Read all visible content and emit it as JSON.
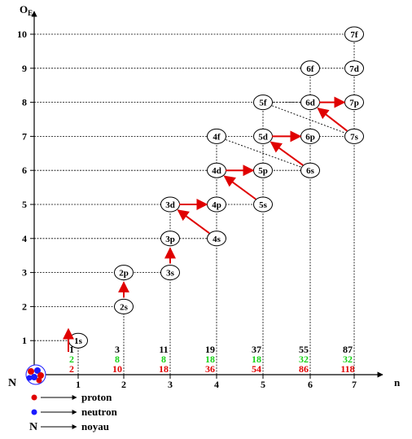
{
  "axes": {
    "y_label_main": "O",
    "y_label_sub": "E",
    "x_label": "n",
    "origin_label": "N"
  },
  "x_ticks": [
    "1",
    "2",
    "3",
    "4",
    "5",
    "6",
    "7"
  ],
  "y_ticks": [
    "1",
    "2",
    "3",
    "4",
    "5",
    "6",
    "7",
    "8",
    "9",
    "10"
  ],
  "orbitals": [
    {
      "label": "1s",
      "n": 1,
      "oe": 1
    },
    {
      "label": "2s",
      "n": 2,
      "oe": 2
    },
    {
      "label": "2p",
      "n": 2,
      "oe": 3
    },
    {
      "label": "3s",
      "n": 3,
      "oe": 3
    },
    {
      "label": "3p",
      "n": 3,
      "oe": 4
    },
    {
      "label": "3d",
      "n": 3,
      "oe": 5
    },
    {
      "label": "4s",
      "n": 4,
      "oe": 4
    },
    {
      "label": "4p",
      "n": 4,
      "oe": 5
    },
    {
      "label": "4d",
      "n": 4,
      "oe": 6
    },
    {
      "label": "4f",
      "n": 4,
      "oe": 7
    },
    {
      "label": "5s",
      "n": 5,
      "oe": 5
    },
    {
      "label": "5p",
      "n": 5,
      "oe": 6
    },
    {
      "label": "5d",
      "n": 5,
      "oe": 7
    },
    {
      "label": "5f",
      "n": 5,
      "oe": 8
    },
    {
      "label": "6s",
      "n": 6,
      "oe": 6
    },
    {
      "label": "6p",
      "n": 6,
      "oe": 7
    },
    {
      "label": "6d",
      "n": 6,
      "oe": 8
    },
    {
      "label": "6f",
      "n": 6,
      "oe": 9
    },
    {
      "label": "7s",
      "n": 7,
      "oe": 7
    },
    {
      "label": "7p",
      "n": 7,
      "oe": 8
    },
    {
      "label": "7d",
      "n": 7,
      "oe": 9
    },
    {
      "label": "7f",
      "n": 7,
      "oe": 10
    }
  ],
  "red_arrows": [
    {
      "from": "1s",
      "to": "1s-up"
    },
    {
      "from": "2s",
      "to": "2p"
    },
    {
      "from": "3s",
      "to": "3p"
    },
    {
      "from": "4s",
      "to": "3d"
    },
    {
      "from": "3d",
      "to": "4p"
    },
    {
      "from": "5s",
      "to": "4d"
    },
    {
      "from": "4d",
      "to": "5p"
    },
    {
      "from": "6s",
      "to": "5d"
    },
    {
      "from": "5d",
      "to": "6p"
    },
    {
      "from": "7s",
      "to": "6d"
    },
    {
      "from": "6d",
      "to": "7p"
    }
  ],
  "dotted_links": [
    {
      "from": "4f",
      "to": "6s"
    },
    {
      "from": "5f",
      "to": "7s"
    },
    {
      "from": "5f",
      "to": "6d"
    }
  ],
  "column_numbers": [
    {
      "top": "1",
      "green": "2",
      "red": "2"
    },
    {
      "top": "3",
      "green": "8",
      "red": "10"
    },
    {
      "top": "11",
      "green": "8",
      "red": "18"
    },
    {
      "top": "19",
      "green": "18",
      "red": "36"
    },
    {
      "top": "37",
      "green": "18",
      "red": "54"
    },
    {
      "top": "55",
      "green": "32",
      "red": "86"
    },
    {
      "top": "87",
      "green": "32",
      "red": "118"
    }
  ],
  "legend": [
    {
      "symbol": "red-dot",
      "label": "proton"
    },
    {
      "symbol": "blue-dot",
      "label": "neutron"
    },
    {
      "symbol": "N",
      "label": "noyau"
    }
  ],
  "colors": {
    "red": "#e00000",
    "green": "#19d219",
    "blue": "#1a1aff",
    "black": "#000000"
  }
}
